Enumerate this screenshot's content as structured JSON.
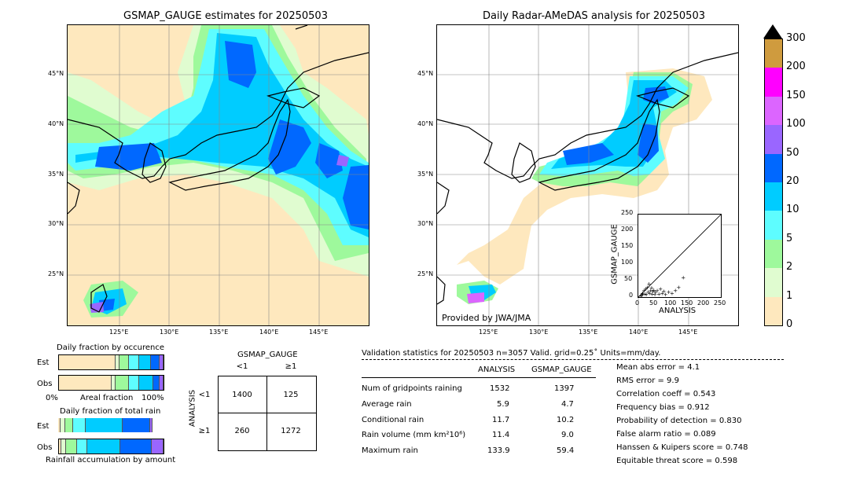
{
  "left_map": {
    "title": "GSMAP_GAUGE estimates for 20250503",
    "lat_ticks": [
      "45°N",
      "40°N",
      "35°N",
      "30°N",
      "25°N"
    ],
    "lon_ticks": [
      "125°E",
      "130°E",
      "135°E",
      "140°E",
      "145°E"
    ]
  },
  "right_map": {
    "title": "Daily Radar-AMeDAS analysis for 20250503",
    "lat_ticks": [
      "45°N",
      "40°N",
      "35°N",
      "30°N",
      "25°N"
    ],
    "lon_ticks": [
      "125°E",
      "130°E",
      "135°E",
      "140°E",
      "145°E"
    ],
    "credit": "Provided by JWA/JMA"
  },
  "colorbar": {
    "levels": [
      "0",
      "1",
      "2",
      "5",
      "10",
      "20",
      "50",
      "100",
      "150",
      "200",
      "300"
    ],
    "colors": [
      "#fee8be",
      "#e0fcd0",
      "#9ef99c",
      "#5efdff",
      "#00ccff",
      "#0068ff",
      "#9a66ff",
      "#dc65ff",
      "#ff00ff",
      "#cf9b3e"
    ]
  },
  "chart_data": [
    {
      "type": "scatter",
      "title": "",
      "xlabel": "ANALYSIS",
      "ylabel": "GSMAP_GAUGE",
      "xlim": [
        0,
        250
      ],
      "ylim": [
        0,
        250
      ],
      "x_ticks": [
        "0",
        "50",
        "100",
        "150",
        "200",
        "250"
      ],
      "y_ticks": [
        "0",
        "50",
        "100",
        "150",
        "200",
        "250"
      ],
      "reference_line": "y = x",
      "points": [
        [
          5,
          3
        ],
        [
          8,
          6
        ],
        [
          10,
          12
        ],
        [
          12,
          9
        ],
        [
          15,
          20
        ],
        [
          18,
          10
        ],
        [
          20,
          25
        ],
        [
          22,
          8
        ],
        [
          25,
          30
        ],
        [
          28,
          15
        ],
        [
          30,
          40
        ],
        [
          32,
          12
        ],
        [
          35,
          20
        ],
        [
          38,
          28
        ],
        [
          40,
          10
        ],
        [
          42,
          18
        ],
        [
          45,
          22
        ],
        [
          48,
          8
        ],
        [
          50,
          15
        ],
        [
          55,
          20
        ],
        [
          60,
          10
        ],
        [
          65,
          25
        ],
        [
          70,
          12
        ],
        [
          75,
          18
        ],
        [
          80,
          8
        ],
        [
          90,
          15
        ],
        [
          100,
          12
        ],
        [
          110,
          20
        ],
        [
          120,
          30
        ],
        [
          134,
          59
        ]
      ]
    },
    {
      "type": "bar",
      "title": "Daily fraction by occurence",
      "categories": [
        "Est",
        "Obs"
      ],
      "xlabel": "Areal fraction",
      "x_ticks": [
        "0%",
        "100%"
      ],
      "segments": [
        [
          0.54,
          0.04,
          0.09,
          0.1,
          0.11,
          0.08,
          0.04
        ],
        [
          0.5,
          0.04,
          0.13,
          0.1,
          0.13,
          0.06,
          0.04
        ]
      ]
    },
    {
      "type": "bar",
      "title": "Daily fraction of total rain",
      "categories": [
        "Est",
        "Obs"
      ],
      "xlabel": "Rainfall accumulation by amount",
      "segments": [
        [
          0.02,
          0.05,
          0.07,
          0.12,
          0.36,
          0.26,
          0.02
        ],
        [
          0.02,
          0.05,
          0.1,
          0.1,
          0.32,
          0.3,
          0.11
        ]
      ]
    },
    {
      "type": "table",
      "title": "GSMAP_GAUGE",
      "col_labels": [
        "<1",
        "≥1"
      ],
      "row_labels": [
        "<1",
        "≥1"
      ],
      "row_title": "ANALYSIS",
      "cells": [
        [
          "1400",
          "125"
        ],
        [
          "260",
          "1272"
        ]
      ]
    }
  ],
  "stats": {
    "header": "Validation statistics for 20250503  n=3057 Valid. grid=0.25˚ Units=mm/day.",
    "col1": "ANALYSIS",
    "col2": "GSMAP_GAUGE",
    "rows": [
      {
        "label": "Num of gridpoints raining",
        "a": "1532",
        "g": "1397"
      },
      {
        "label": "Average rain",
        "a": "5.9",
        "g": "4.7"
      },
      {
        "label": "Conditional rain",
        "a": "11.7",
        "g": "10.2"
      },
      {
        "label": "Rain volume (mm km²10⁶)",
        "a": "11.4",
        "g": "9.0"
      },
      {
        "label": "Maximum rain",
        "a": "133.9",
        "g": "59.4"
      }
    ],
    "scores": [
      "Mean abs error =    4.1",
      "RMS error =    9.9",
      "Correlation coeff =  0.543",
      "Frequency bias =  0.912",
      "Probability of detection =  0.830",
      "False alarm ratio =  0.089",
      "Hanssen & Kuipers score =  0.748",
      "Equitable threat score =  0.598"
    ]
  }
}
